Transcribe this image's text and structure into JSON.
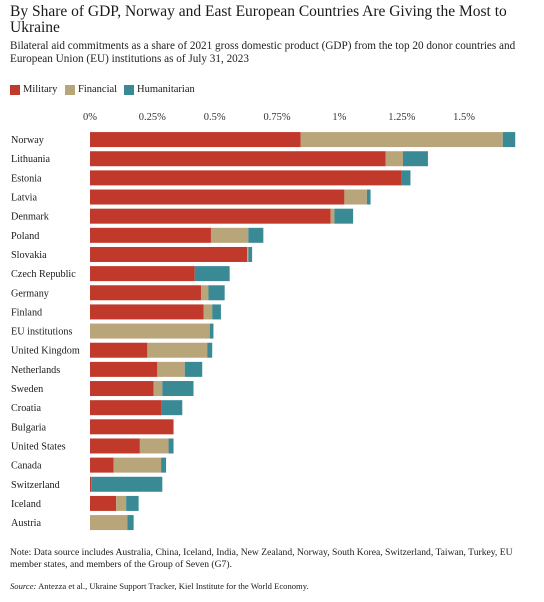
{
  "title": "By Share of GDP, Norway and East European Countries Are Giving the Most to Ukraine",
  "subtitle": "Bilateral aid commitments as a share of 2021 gross domestic product (GDP) from the top 20 donor countries and European Union (EU) institutions as of July 31, 2023",
  "note": "Note: Data source includes Australia, China, Iceland, India, New Zealand, Norway, South Korea, Switzerland, Taiwan, Turkey, EU member states, and members of the Group of Seven (G7).",
  "source_label": "Source:",
  "source_text": " Antezza et al., Ukraine Support Tracker, Kiel Institute for the World Economy.",
  "colors": {
    "Military": "#c0392b",
    "Financial": "#b9a57a",
    "Humanitarian": "#3a8a96"
  },
  "chart_data": {
    "type": "bar",
    "orientation": "horizontal",
    "stacked": true,
    "title": "By Share of GDP, Norway and East European Countries Are Giving the Most to Ukraine",
    "xlabel": "",
    "ylabel": "",
    "xlim": [
      0,
      1.7
    ],
    "x_ticks": [
      0,
      0.25,
      0.5,
      0.75,
      1,
      1.25,
      1.5
    ],
    "x_tick_labels": [
      "0%",
      "0.25%",
      "0.5%",
      "0.75%",
      "1%",
      "1.25%",
      "1.5%"
    ],
    "unit": "% of 2021 GDP",
    "grid": false,
    "legend_position": "top-left",
    "categories": [
      "Norway",
      "Lithuania",
      "Estonia",
      "Latvia",
      "Denmark",
      "Poland",
      "Slovakia",
      "Czech Republic",
      "Germany",
      "Finland",
      "EU institutions",
      "United Kingdom",
      "Netherlands",
      "Sweden",
      "Croatia",
      "Bulgaria",
      "United States",
      "Canada",
      "Switzerland",
      "Iceland",
      "Austria"
    ],
    "series": [
      {
        "name": "Military",
        "values": [
          0.845,
          1.185,
          1.25,
          1.02,
          0.965,
          0.485,
          0.63,
          0.42,
          0.445,
          0.455,
          0,
          0.23,
          0.27,
          0.255,
          0.285,
          0.335,
          0.2,
          0.095,
          0.005,
          0.105,
          0
        ]
      },
      {
        "name": "Financial",
        "values": [
          0.81,
          0.07,
          0,
          0.09,
          0.015,
          0.15,
          0.005,
          0,
          0.03,
          0.035,
          0.48,
          0.24,
          0.11,
          0.035,
          0,
          0,
          0.115,
          0.19,
          0,
          0.04,
          0.15
        ]
      },
      {
        "name": "Humanitarian",
        "values": [
          0.05,
          0.1,
          0.035,
          0.015,
          0.075,
          0.06,
          0.015,
          0.14,
          0.065,
          0.035,
          0.015,
          0.02,
          0.07,
          0.125,
          0.085,
          0,
          0.02,
          0.02,
          0.285,
          0.05,
          0.025
        ]
      }
    ]
  }
}
